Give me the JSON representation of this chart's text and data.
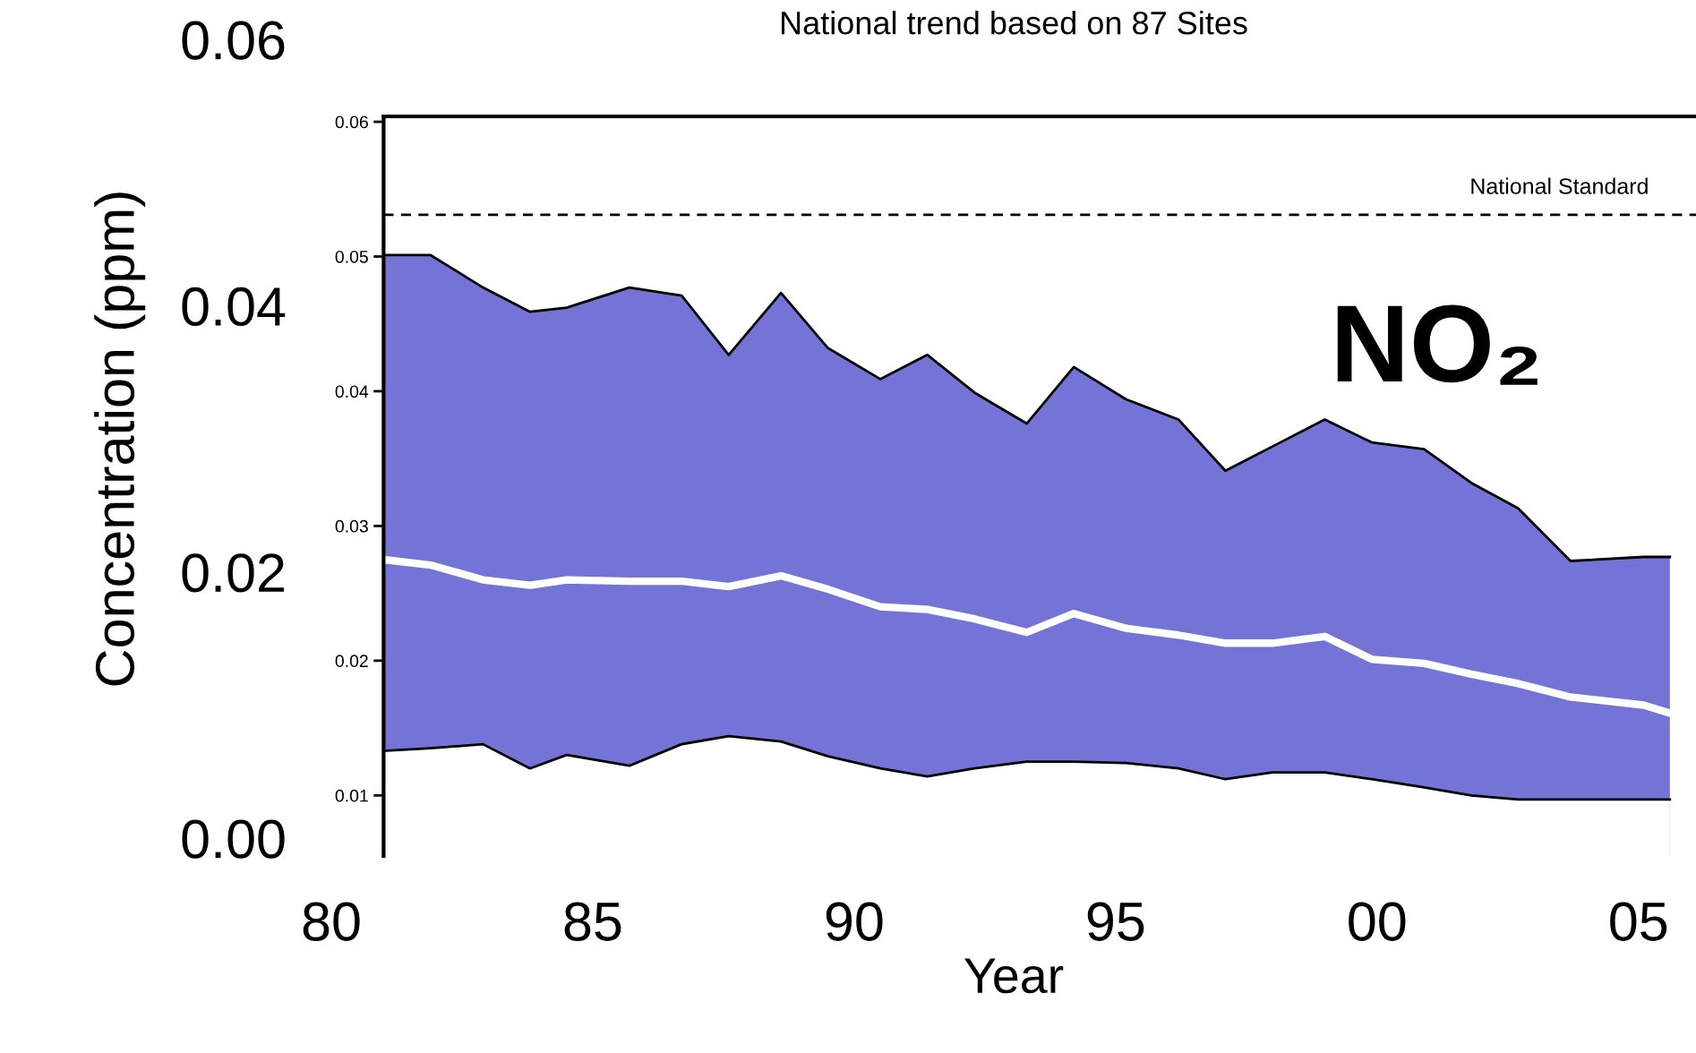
{
  "chart_data": {
    "type": "area",
    "title": "National trend based on 87 Sites",
    "xlabel": "Year",
    "y2label": "Concentration (ppm)",
    "annotations": [
      "NO₂"
    ],
    "x": [
      1981.0,
      1981.9,
      1982.9,
      1983.8,
      1984.5,
      1985.7,
      1986.7,
      1987.6,
      1988.6,
      1989.5,
      1990.5,
      1991.4,
      1992.3,
      1993.3,
      1994.2,
      1995.2,
      1996.2,
      1997.1,
      1998.0,
      1999.0,
      1999.9,
      2000.9,
      2001.8,
      2002.7,
      2003.7,
      2005.1,
      2005.6
    ],
    "series": [
      {
        "color": "#7474d6",
        "values": [
          0.0501,
          0.0501,
          0.0477,
          0.0459,
          0.0462,
          0.0477,
          0.0471,
          0.0427,
          0.0473,
          0.0432,
          0.0409,
          0.0427,
          0.0399,
          0.0376,
          0.0418,
          0.0394,
          0.0379,
          0.0341,
          0.0359,
          0.0379,
          0.0362,
          0.0357,
          0.0332,
          0.0313,
          0.0274,
          0.0277,
          0.0277
        ]
      },
      {
        "type": "area",
        "color": "#ffffff",
        "values": [
          0.0133,
          0.0135,
          0.0138,
          0.012,
          0.013,
          0.0122,
          0.0138,
          0.0144,
          0.014,
          0.0129,
          0.012,
          0.0114,
          0.012,
          0.0125,
          0.0125,
          0.0124,
          0.012,
          0.0112,
          0.0117,
          0.0117,
          0.0112,
          0.0106,
          0.01,
          0.0097,
          0.0097,
          0.0097,
          0.0097
        ]
      },
      {
        "type": "line",
        "color": "#ffffff",
        "values": [
          0.0275,
          0.0271,
          0.026,
          0.0256,
          0.026,
          0.0259,
          0.0259,
          0.0255,
          0.0263,
          0.0253,
          0.024,
          0.0238,
          0.0231,
          0.0221,
          0.0235,
          0.0224,
          0.0219,
          0.0213,
          0.0213,
          0.0218,
          0.0201,
          0.0198,
          0.019,
          0.0183,
          0.0173,
          0.0167,
          0.0161
        ]
      }
    ],
    "xlim": [
      1980,
      2006.1
    ],
    "xticks": [
      {
        "value": 1980,
        "label": "80"
      },
      {
        "value": 1985,
        "label": "85"
      },
      {
        "value": 1990,
        "label": "90"
      },
      {
        "value": 1995,
        "label": "95"
      },
      {
        "value": 2000,
        "label": "00"
      },
      {
        "value": 2005,
        "label": "05"
      }
    ],
    "ylim": [
      0.0055,
      0.0604
    ],
    "yticks": [
      0.01,
      0.02,
      0.03,
      0.04,
      0.05,
      0.06
    ],
    "y2lim": [
      0,
      0.06
    ],
    "y2ticks": [
      {
        "value": 0,
        "label": "0.00"
      },
      0.02,
      0.04,
      0.06
    ],
    "ref_lines": [
      {
        "axis": "y",
        "value": 0.0531,
        "label": "National Standard",
        "color": "#000000",
        "line_style": "dashed"
      }
    ],
    "grid": false,
    "legend": false
  }
}
